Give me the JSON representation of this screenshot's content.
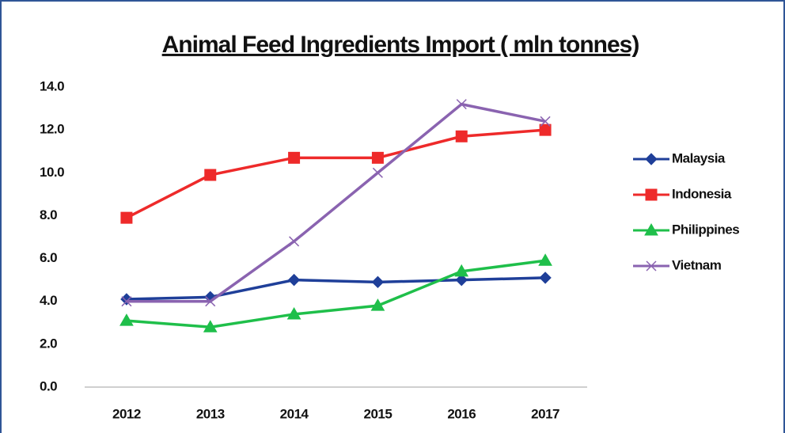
{
  "chart_data": {
    "type": "line",
    "title": "Animal Feed Ingredients Import ( mln tonnes)",
    "categories": [
      "2012",
      "2013",
      "2014",
      "2015",
      "2016",
      "2017"
    ],
    "series": [
      {
        "name": "Malaysia",
        "color": "#1f3f99",
        "marker": "diamond",
        "values": [
          4.1,
          4.2,
          5.0,
          4.9,
          5.0,
          5.1
        ]
      },
      {
        "name": "Indonesia",
        "color": "#ee2a2a",
        "marker": "square",
        "values": [
          7.9,
          9.9,
          10.7,
          10.7,
          11.7,
          12.0
        ]
      },
      {
        "name": "Philippines",
        "color": "#1fbf4a",
        "marker": "triangle",
        "values": [
          3.1,
          2.8,
          3.4,
          3.8,
          5.4,
          5.9
        ]
      },
      {
        "name": "Vietnam",
        "color": "#8a63b0",
        "marker": "x",
        "values": [
          4.0,
          4.0,
          6.8,
          10.0,
          13.2,
          12.4
        ]
      }
    ],
    "ylim": [
      0,
      14
    ],
    "yticks": [
      {
        "value": 0,
        "label": "0.0"
      },
      {
        "value": 2,
        "label": "2.0"
      },
      {
        "value": 4,
        "label": "4.0"
      },
      {
        "value": 6,
        "label": "6.0"
      },
      {
        "value": 8,
        "label": "8.0"
      },
      {
        "value": 10,
        "label": "10.0"
      },
      {
        "value": 12,
        "label": "12.0"
      },
      {
        "value": 14,
        "label": "14.0"
      }
    ],
    "grid": false,
    "legend": "right"
  }
}
